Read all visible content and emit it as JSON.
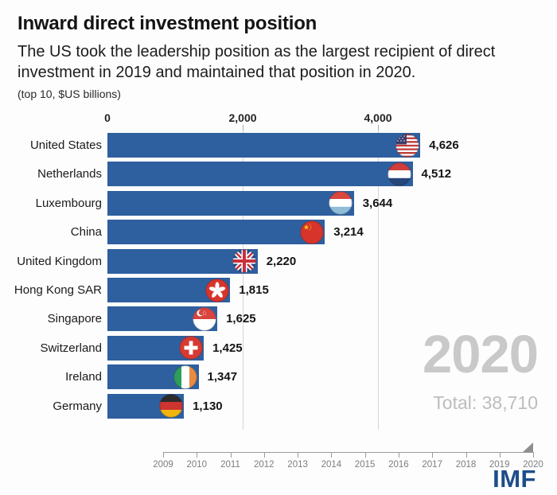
{
  "header": {
    "title": "Inward direct investment position",
    "subtitle": "The US took the leadership position as the largest recipient of direct investment in 2019 and maintained that position in 2020.",
    "caption": "(top 10, $US billions)"
  },
  "chart_data": {
    "type": "bar",
    "orientation": "horizontal",
    "title": "Inward direct investment position",
    "unit": "$US billions",
    "categories": [
      "United States",
      "Netherlands",
      "Luxembourg",
      "China",
      "United Kingdom",
      "Hong Kong SAR",
      "Singapore",
      "Switzerland",
      "Ireland",
      "Germany"
    ],
    "values": [
      4626,
      4512,
      3644,
      3214,
      2220,
      1815,
      1625,
      1425,
      1347,
      1130
    ],
    "value_labels": [
      "4,626",
      "4,512",
      "3,644",
      "3,214",
      "2,220",
      "1,815",
      "1,625",
      "1,425",
      "1,347",
      "1,130"
    ],
    "flags": [
      "us",
      "nl",
      "lu",
      "cn",
      "uk",
      "hk",
      "sg",
      "ch",
      "ie",
      "de"
    ],
    "x_ticks": [
      "0",
      "2,000",
      "4,000"
    ],
    "x_tick_values": [
      0,
      2000,
      4000
    ],
    "xlim": [
      0,
      4626
    ],
    "grid": true,
    "legend": "none",
    "year": "2020",
    "total_label": "Total: 38,710"
  },
  "overlay": {
    "year": "2020",
    "total": "Total: 38,710"
  },
  "timeline": {
    "years": [
      "2009",
      "2010",
      "2011",
      "2012",
      "2013",
      "2014",
      "2015",
      "2016",
      "2017",
      "2018",
      "2019",
      "2020"
    ],
    "selected": "2020"
  },
  "footer": {
    "logo": "IMF"
  },
  "colors": {
    "bar": "#2e5f9e",
    "grid": "#d6d6d6",
    "year_text": "#c9c9c9",
    "total_text": "#bdbdbd",
    "imf_blue": "#1d4d8a",
    "timeline": "#9a9a9a"
  }
}
